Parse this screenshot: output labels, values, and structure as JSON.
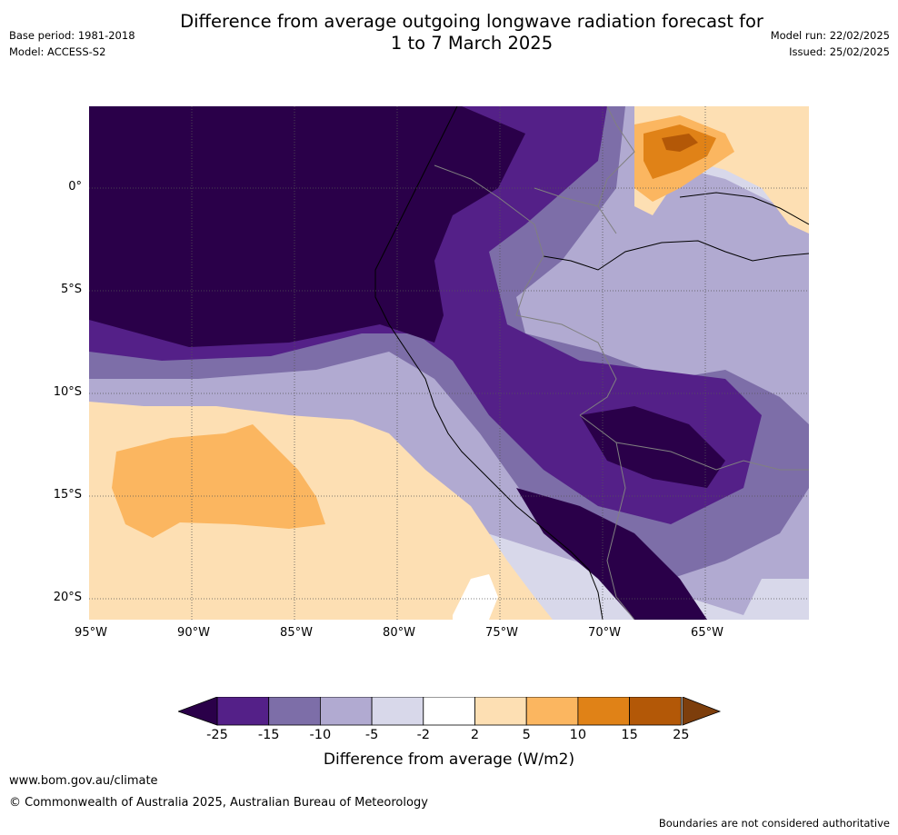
{
  "header": {
    "base_period": "Base period: 1981-2018",
    "model": "Model: ACCESS-S2",
    "title_line1": "Difference from average outgoing longwave radiation forecast for",
    "title_line2": "1 to 7 March 2025",
    "model_run": "Model run: 22/02/2025",
    "issued": "Issued: 25/02/2025"
  },
  "map": {
    "lat_labels": [
      "0°",
      "5°S",
      "10°S",
      "15°S",
      "20°S"
    ],
    "lon_labels": [
      "95°W",
      "90°W",
      "85°W",
      "80°W",
      "75°W",
      "70°W",
      "65°W"
    ]
  },
  "colorbar": {
    "ticks": [
      "-25",
      "-15",
      "-10",
      "-5",
      "-2",
      "2",
      "5",
      "10",
      "15",
      "25"
    ],
    "colors": [
      "#2a0049",
      "#542088",
      "#7d6ea8",
      "#b1aad1",
      "#d8d8ea",
      "#ffffff",
      "#fddfb3",
      "#fbb660",
      "#e08217",
      "#b35807"
    ],
    "label": "Difference from average (W/m2)"
  },
  "footer": {
    "website": "www.bom.gov.au/climate",
    "copyright": "© Commonwealth of Australia 2025, Australian Bureau of Meteorology",
    "disclaimer": "Boundaries are not considered authoritative"
  }
}
